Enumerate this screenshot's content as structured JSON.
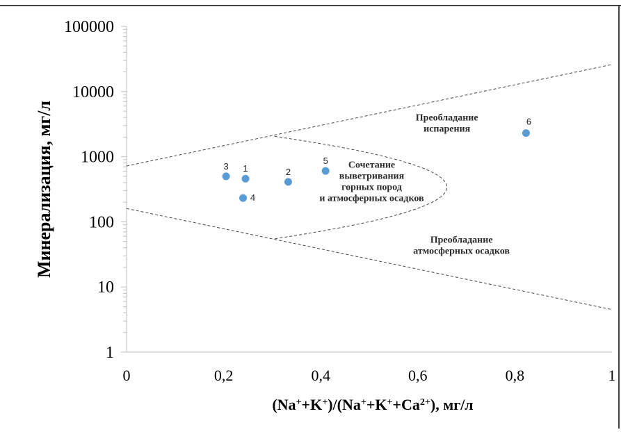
{
  "chart_data": {
    "type": "scatter",
    "title": "",
    "ylabel": "Минерализация, мг/л",
    "xlabel_parts": [
      {
        "t": "(Na",
        "sup": false
      },
      {
        "t": "+",
        "sup": true
      },
      {
        "t": "+K",
        "sup": false
      },
      {
        "t": "+",
        "sup": true
      },
      {
        "t": ")/(Na",
        "sup": false
      },
      {
        "t": "+",
        "sup": true
      },
      {
        "t": "+K",
        "sup": false
      },
      {
        "t": "+",
        "sup": true
      },
      {
        "t": "+Ca",
        "sup": false
      },
      {
        "t": "2+",
        "sup": true
      },
      {
        "t": "), мг/л",
        "sup": false
      }
    ],
    "xlim": [
      0,
      1
    ],
    "ylim": [
      1,
      100000
    ],
    "yscale": "log",
    "x_ticks": [
      {
        "v": 0,
        "label": "0"
      },
      {
        "v": 0.2,
        "label": "0,2"
      },
      {
        "v": 0.4,
        "label": "0,4"
      },
      {
        "v": 0.6,
        "label": "0,6"
      },
      {
        "v": 0.8,
        "label": "0,8"
      },
      {
        "v": 1,
        "label": "1"
      }
    ],
    "y_ticks": [
      {
        "v": 1,
        "label": "1"
      },
      {
        "v": 10,
        "label": "10"
      },
      {
        "v": 100,
        "label": "100"
      },
      {
        "v": 1000,
        "label": "1000"
      },
      {
        "v": 10000,
        "label": "10000"
      },
      {
        "v": 100000,
        "label": "100000"
      }
    ],
    "grid": false,
    "point_color": "#5b9bd5",
    "points": [
      {
        "label": "1",
        "x": 0.245,
        "y": 460
      },
      {
        "label": "2",
        "x": 0.333,
        "y": 410
      },
      {
        "label": "3",
        "x": 0.205,
        "y": 500
      },
      {
        "label": "4",
        "x": 0.24,
        "y": 232
      },
      {
        "label": "5",
        "x": 0.41,
        "y": 605
      },
      {
        "label": "6",
        "x": 0.823,
        "y": 2300
      }
    ],
    "boundary_lines": [
      {
        "points": [
          [
            0,
            720
          ],
          [
            1,
            26000
          ]
        ]
      },
      {
        "points": [
          [
            0,
            160
          ],
          [
            1,
            4.5
          ]
        ]
      }
    ],
    "boundary_curve": [
      [
        0.305,
        2050
      ],
      [
        0.66,
        340
      ],
      [
        0.305,
        55
      ]
    ],
    "annotations": [
      {
        "lines": [
          "Преобладание",
          "испарения"
        ],
        "x": 0.66,
        "y": 3600
      },
      {
        "lines": [
          "Сочетание",
          "выветривания",
          "горных пород",
          "и атмосферных осадков"
        ],
        "x": 0.505,
        "y": 680
      },
      {
        "lines": [
          "Преобладание",
          "атмосферных осадков"
        ],
        "x": 0.69,
        "y": 48
      }
    ]
  }
}
